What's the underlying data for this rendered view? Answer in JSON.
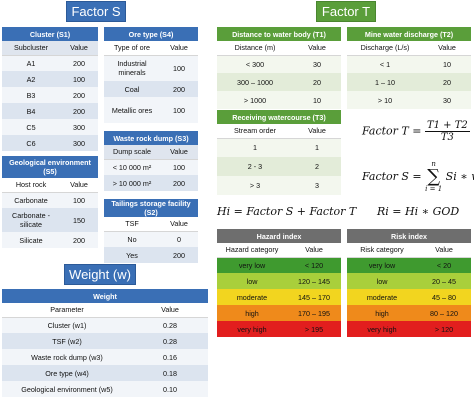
{
  "banners": {
    "factor_s": "Factor S",
    "factor_t": "Factor T",
    "weight": "Weight (w)"
  },
  "cluster": {
    "title": "Cluster (S1)",
    "headers": [
      "Subcluster",
      "Value"
    ],
    "rows": [
      [
        "A1",
        "200"
      ],
      [
        "A2",
        "100"
      ],
      [
        "B3",
        "200"
      ],
      [
        "B4",
        "200"
      ],
      [
        "C5",
        "300"
      ],
      [
        "C6",
        "300"
      ]
    ]
  },
  "geo_env": {
    "title": "Geological environment (S5)",
    "headers": [
      "Host rock",
      "Value"
    ],
    "rows": [
      [
        "Carbonate",
        "100"
      ],
      [
        "Carbonate -silicate",
        "150"
      ],
      [
        "Silicate",
        "200"
      ]
    ]
  },
  "ore_type": {
    "title": "Ore type (S4)",
    "headers": [
      "Type of ore",
      "Value"
    ],
    "rows": [
      [
        "Industrial minerals",
        "100"
      ],
      [
        "Coal",
        "200"
      ],
      [
        "Metallic ores",
        "100"
      ]
    ]
  },
  "waste_rock": {
    "title": "Waste rock dump (S3)",
    "headers": [
      "Dump scale",
      "Value"
    ],
    "rows": [
      [
        "< 10 000 m²",
        "100"
      ],
      [
        "> 10 000 m²",
        "200"
      ]
    ]
  },
  "tailings": {
    "title": "Tailings storage facility (S2)",
    "headers": [
      "TSF",
      "Value"
    ],
    "rows": [
      [
        "No",
        "0"
      ],
      [
        "Yes",
        "200"
      ]
    ]
  },
  "distance": {
    "title": "Distance to water body (T1)",
    "headers": [
      "Distance (m)",
      "Value"
    ],
    "rows": [
      [
        "< 300",
        "30"
      ],
      [
        "300 – 1000",
        "20"
      ],
      [
        "> 1000",
        "10"
      ]
    ]
  },
  "discharge": {
    "title": "Mine water discharge (T2)",
    "headers": [
      "Discharge (L/s)",
      "Value"
    ],
    "rows": [
      [
        "< 1",
        "10"
      ],
      [
        "1 – 10",
        "20"
      ],
      [
        "> 10",
        "30"
      ]
    ]
  },
  "watercourse": {
    "title": "Receiving watercourse (T3)",
    "headers": [
      "Stream order",
      "Value"
    ],
    "rows": [
      [
        "1",
        "1"
      ],
      [
        "2 - 3",
        "2"
      ],
      [
        "> 3",
        "3"
      ]
    ]
  },
  "formulas": {
    "factor_t_lhs": "Factor T =",
    "factor_t_num": "T1 + T2",
    "factor_t_den": "T3",
    "factor_s_lhs": "Factor S =",
    "sigma_top": "n",
    "sigma_bottom": "i = 1",
    "factor_s_rhs": "Si ∗ wi",
    "hi": "Hi = Factor S + Factor T",
    "ri": "Ri = Hi ∗ GOD"
  },
  "hazard": {
    "title": "Hazard index",
    "headers": [
      "Hazard category",
      "Value"
    ],
    "rows": [
      [
        "very low",
        "< 120"
      ],
      [
        "low",
        "120 – 145"
      ],
      [
        "moderate",
        "145 – 170"
      ],
      [
        "high",
        "170 – 195"
      ],
      [
        "very high",
        "> 195"
      ]
    ]
  },
  "risk": {
    "title": "Risk index",
    "headers": [
      "Risk category",
      "Value"
    ],
    "rows": [
      [
        "very low",
        "< 20"
      ],
      [
        "low",
        "20 – 45"
      ],
      [
        "moderate",
        "45 – 80"
      ],
      [
        "high",
        "80 – 120"
      ],
      [
        "very high",
        "> 120"
      ]
    ]
  },
  "weight": {
    "title": "Weight",
    "headers": [
      "Parameter",
      "Value"
    ],
    "rows": [
      [
        "Cluster (w1)",
        "0.28"
      ],
      [
        "TSF (w2)",
        "0.28"
      ],
      [
        "Waste rock dump (w3)",
        "0.16"
      ],
      [
        "Ore type (w4)",
        "0.18"
      ],
      [
        "Geological environment (w5)",
        "0.10"
      ]
    ]
  },
  "colors": {
    "blue": "#3a6fb5",
    "green": "#5a9e3a",
    "gray": "#6e6e6e",
    "very_low": "#3f9a2f",
    "low": "#a9cf3b",
    "moderate": "#f2d51f",
    "high": "#ef8a1b",
    "very_high": "#e21e1e"
  }
}
